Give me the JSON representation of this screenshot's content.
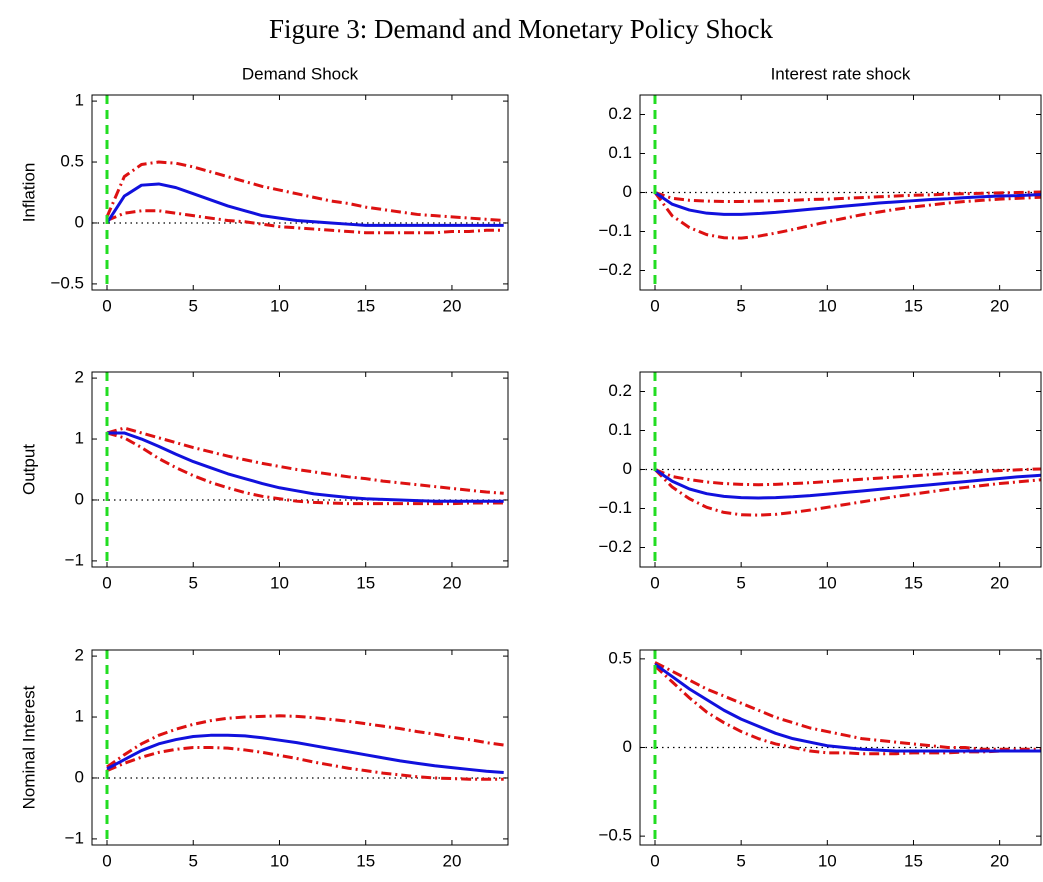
{
  "title": "Figure 3: Demand and Monetary Policy Shock",
  "chart_data": [
    {
      "type": "line",
      "title": "Demand Shock",
      "ylabel": "Inflation",
      "x": [
        0,
        1,
        2,
        3,
        4,
        5,
        6,
        7,
        8,
        9,
        10,
        11,
        12,
        13,
        14,
        15,
        16,
        17,
        18,
        19,
        20,
        21,
        22,
        23
      ],
      "xlim": [
        -0.87,
        23.25
      ],
      "xticks": [
        0,
        5,
        10,
        15,
        20
      ],
      "ylim": [
        -0.55,
        1.05
      ],
      "yticks": [
        {
          "value": -0.5,
          "label": "−0.5"
        },
        0,
        0.5,
        1
      ],
      "hline": 0,
      "vline": 0,
      "hline_color": "#000000",
      "vline_color": "#22dd22",
      "series": [
        {
          "color": "#dd1111",
          "style": "dashdot",
          "values": [
            0.05,
            0.38,
            0.48,
            0.5,
            0.49,
            0.46,
            0.42,
            0.38,
            0.34,
            0.3,
            0.27,
            0.24,
            0.21,
            0.18,
            0.16,
            0.13,
            0.11,
            0.09,
            0.07,
            0.06,
            0.05,
            0.04,
            0.03,
            0.02
          ]
        },
        {
          "color": "#dd1111",
          "style": "dashdot",
          "values": [
            0.02,
            0.08,
            0.1,
            0.1,
            0.08,
            0.06,
            0.04,
            0.02,
            0.01,
            -0.01,
            -0.03,
            -0.04,
            -0.05,
            -0.06,
            -0.07,
            -0.08,
            -0.08,
            -0.08,
            -0.08,
            -0.08,
            -0.07,
            -0.07,
            -0.06,
            -0.06
          ]
        },
        {
          "color": "#1111dd",
          "style": "solid",
          "values": [
            0,
            0.22,
            0.31,
            0.32,
            0.29,
            0.24,
            0.19,
            0.14,
            0.1,
            0.06,
            0.04,
            0.02,
            0.01,
            0,
            -0.01,
            -0.02,
            -0.02,
            -0.02,
            -0.02,
            -0.02,
            -0.02,
            -0.02,
            -0.02,
            -0.02
          ]
        }
      ]
    },
    {
      "type": "line",
      "title": "Interest rate shock",
      "x": [
        0,
        1,
        2,
        3,
        4,
        5,
        6,
        7,
        8,
        9,
        10,
        11,
        12,
        13,
        14,
        15,
        16,
        17,
        18,
        19,
        20,
        21,
        22,
        23
      ],
      "xlim": [
        -0.87,
        22.4
      ],
      "xticks": [
        0,
        5,
        10,
        15,
        20
      ],
      "ylim": [
        -0.25,
        0.25
      ],
      "yticks": [
        {
          "value": -0.2,
          "label": "−0.2"
        },
        {
          "value": -0.1,
          "label": "−0.1"
        },
        0,
        0.1,
        0.2
      ],
      "hline": 0,
      "vline": 0,
      "hline_color": "#000000",
      "vline_color": "#22dd22",
      "series": [
        {
          "color": "#dd1111",
          "style": "dashdot",
          "values": [
            0,
            -0.015,
            -0.02,
            -0.022,
            -0.023,
            -0.023,
            -0.022,
            -0.021,
            -0.02,
            -0.018,
            -0.017,
            -0.015,
            -0.013,
            -0.011,
            -0.009,
            -0.007,
            -0.006,
            -0.004,
            -0.003,
            -0.002,
            -0.001,
            0,
            0.001,
            0.002
          ]
        },
        {
          "color": "#dd1111",
          "style": "dashdot",
          "values": [
            0,
            -0.06,
            -0.09,
            -0.108,
            -0.116,
            -0.117,
            -0.112,
            -0.104,
            -0.095,
            -0.085,
            -0.075,
            -0.066,
            -0.057,
            -0.05,
            -0.043,
            -0.037,
            -0.032,
            -0.027,
            -0.023,
            -0.02,
            -0.017,
            -0.015,
            -0.013,
            -0.011
          ]
        },
        {
          "color": "#1111dd",
          "style": "solid",
          "values": [
            0,
            -0.03,
            -0.045,
            -0.053,
            -0.056,
            -0.056,
            -0.054,
            -0.051,
            -0.047,
            -0.043,
            -0.039,
            -0.035,
            -0.031,
            -0.027,
            -0.024,
            -0.021,
            -0.018,
            -0.016,
            -0.013,
            -0.011,
            -0.009,
            -0.008,
            -0.006,
            -0.005
          ]
        }
      ]
    },
    {
      "type": "line",
      "ylabel": "Output",
      "x": [
        0,
        1,
        2,
        3,
        4,
        5,
        6,
        7,
        8,
        9,
        10,
        11,
        12,
        13,
        14,
        15,
        16,
        17,
        18,
        19,
        20,
        21,
        22,
        23
      ],
      "xlim": [
        -0.87,
        23.25
      ],
      "xticks": [
        0,
        5,
        10,
        15,
        20
      ],
      "ylim": [
        -1.1,
        2.1
      ],
      "yticks": [
        {
          "value": -1,
          "label": "−1"
        },
        0,
        1,
        2
      ],
      "hline": 0,
      "vline": 0,
      "hline_color": "#000000",
      "vline_color": "#22dd22",
      "series": [
        {
          "color": "#dd1111",
          "style": "dashdot",
          "values": [
            1.1,
            1.18,
            1.1,
            1.02,
            0.94,
            0.86,
            0.79,
            0.72,
            0.66,
            0.6,
            0.55,
            0.5,
            0.46,
            0.42,
            0.38,
            0.35,
            0.31,
            0.28,
            0.25,
            0.22,
            0.19,
            0.16,
            0.13,
            0.11
          ]
        },
        {
          "color": "#dd1111",
          "style": "dashdot",
          "values": [
            1.1,
            1.02,
            0.86,
            0.68,
            0.53,
            0.4,
            0.29,
            0.2,
            0.12,
            0.06,
            0.02,
            -0.02,
            -0.04,
            -0.05,
            -0.06,
            -0.06,
            -0.06,
            -0.06,
            -0.06,
            -0.06,
            -0.06,
            -0.05,
            -0.05,
            -0.05
          ]
        },
        {
          "color": "#1111dd",
          "style": "solid",
          "values": [
            1.1,
            1.1,
            1.0,
            0.88,
            0.75,
            0.63,
            0.53,
            0.43,
            0.35,
            0.27,
            0.2,
            0.15,
            0.1,
            0.07,
            0.04,
            0.02,
            0.01,
            0,
            -0.01,
            -0.02,
            -0.02,
            -0.02,
            -0.02,
            -0.02
          ]
        }
      ]
    },
    {
      "type": "line",
      "x": [
        0,
        1,
        2,
        3,
        4,
        5,
        6,
        7,
        8,
        9,
        10,
        11,
        12,
        13,
        14,
        15,
        16,
        17,
        18,
        19,
        20,
        21,
        22,
        23
      ],
      "xlim": [
        -0.87,
        22.4
      ],
      "xticks": [
        0,
        5,
        10,
        15,
        20
      ],
      "ylim": [
        -0.25,
        0.25
      ],
      "yticks": [
        {
          "value": -0.2,
          "label": "−0.2"
        },
        {
          "value": -0.1,
          "label": "−0.1"
        },
        0,
        0.1,
        0.2
      ],
      "hline": 0,
      "vline": 0,
      "hline_color": "#000000",
      "vline_color": "#22dd22",
      "series": [
        {
          "color": "#dd1111",
          "style": "dashdot",
          "values": [
            0,
            -0.018,
            -0.026,
            -0.032,
            -0.036,
            -0.038,
            -0.039,
            -0.038,
            -0.036,
            -0.034,
            -0.031,
            -0.028,
            -0.025,
            -0.022,
            -0.019,
            -0.016,
            -0.013,
            -0.01,
            -0.008,
            -0.005,
            -0.003,
            -0.001,
            0.001,
            0.002
          ]
        },
        {
          "color": "#dd1111",
          "style": "dashdot",
          "values": [
            0,
            -0.045,
            -0.075,
            -0.097,
            -0.11,
            -0.116,
            -0.117,
            -0.115,
            -0.11,
            -0.104,
            -0.097,
            -0.09,
            -0.083,
            -0.076,
            -0.069,
            -0.063,
            -0.057,
            -0.051,
            -0.046,
            -0.041,
            -0.036,
            -0.032,
            -0.028,
            -0.024
          ]
        },
        {
          "color": "#1111dd",
          "style": "solid",
          "values": [
            0,
            -0.03,
            -0.05,
            -0.062,
            -0.069,
            -0.072,
            -0.073,
            -0.072,
            -0.07,
            -0.067,
            -0.063,
            -0.059,
            -0.055,
            -0.051,
            -0.047,
            -0.043,
            -0.039,
            -0.035,
            -0.031,
            -0.027,
            -0.023,
            -0.019,
            -0.016,
            -0.013
          ]
        }
      ]
    },
    {
      "type": "line",
      "ylabel": "Nominal Interest",
      "x": [
        0,
        1,
        2,
        3,
        4,
        5,
        6,
        7,
        8,
        9,
        10,
        11,
        12,
        13,
        14,
        15,
        16,
        17,
        18,
        19,
        20,
        21,
        22,
        23
      ],
      "xlim": [
        -0.87,
        23.25
      ],
      "xticks": [
        0,
        5,
        10,
        15,
        20
      ],
      "ylim": [
        -1.1,
        2.1
      ],
      "yticks": [
        {
          "value": -1,
          "label": "−1"
        },
        0,
        1,
        2
      ],
      "hline": 0,
      "vline": 0,
      "hline_color": "#000000",
      "vline_color": "#22dd22",
      "series": [
        {
          "color": "#dd1111",
          "style": "dashdot",
          "values": [
            0.18,
            0.38,
            0.56,
            0.7,
            0.8,
            0.88,
            0.94,
            0.98,
            1.0,
            1.01,
            1.02,
            1.01,
            0.99,
            0.96,
            0.93,
            0.89,
            0.85,
            0.81,
            0.76,
            0.72,
            0.67,
            0.63,
            0.58,
            0.54
          ]
        },
        {
          "color": "#dd1111",
          "style": "dashdot",
          "values": [
            0.12,
            0.24,
            0.34,
            0.42,
            0.47,
            0.5,
            0.5,
            0.49,
            0.46,
            0.42,
            0.37,
            0.32,
            0.26,
            0.21,
            0.16,
            0.12,
            0.08,
            0.05,
            0.02,
            0,
            -0.01,
            -0.02,
            -0.02,
            -0.02
          ]
        },
        {
          "color": "#1111dd",
          "style": "solid",
          "values": [
            0.15,
            0.3,
            0.45,
            0.56,
            0.63,
            0.68,
            0.7,
            0.7,
            0.69,
            0.66,
            0.62,
            0.58,
            0.53,
            0.48,
            0.43,
            0.38,
            0.33,
            0.28,
            0.24,
            0.2,
            0.17,
            0.14,
            0.11,
            0.09
          ]
        }
      ]
    },
    {
      "type": "line",
      "x": [
        0,
        1,
        2,
        3,
        4,
        5,
        6,
        7,
        8,
        9,
        10,
        11,
        12,
        13,
        14,
        15,
        16,
        17,
        18,
        19,
        20,
        21,
        22,
        23
      ],
      "xlim": [
        -0.87,
        22.4
      ],
      "xticks": [
        0,
        5,
        10,
        15,
        20
      ],
      "ylim": [
        -0.55,
        0.55
      ],
      "yticks": [
        {
          "value": -0.5,
          "label": "−0.5"
        },
        0,
        0.5
      ],
      "hline": 0,
      "vline": 0,
      "hline_color": "#000000",
      "vline_color": "#22dd22",
      "series": [
        {
          "color": "#dd1111",
          "style": "dashdot",
          "values": [
            0.48,
            0.43,
            0.38,
            0.33,
            0.29,
            0.25,
            0.21,
            0.17,
            0.14,
            0.11,
            0.09,
            0.07,
            0.05,
            0.04,
            0.03,
            0.02,
            0.01,
            0,
            0,
            -0.01,
            -0.01,
            -0.01,
            -0.01,
            -0.01
          ]
        },
        {
          "color": "#dd1111",
          "style": "dashdot",
          "values": [
            0.46,
            0.37,
            0.28,
            0.2,
            0.14,
            0.09,
            0.05,
            0.02,
            0,
            -0.02,
            -0.03,
            -0.03,
            -0.035,
            -0.035,
            -0.035,
            -0.03,
            -0.03,
            -0.03,
            -0.025,
            -0.025,
            -0.02,
            -0.02,
            -0.02,
            -0.02
          ]
        },
        {
          "color": "#1111dd",
          "style": "solid",
          "values": [
            0.47,
            0.4,
            0.33,
            0.27,
            0.21,
            0.16,
            0.12,
            0.08,
            0.05,
            0.03,
            0.01,
            0,
            -0.01,
            -0.015,
            -0.02,
            -0.02,
            -0.02,
            -0.02,
            -0.02,
            -0.02,
            -0.02,
            -0.02,
            -0.02,
            -0.02
          ]
        }
      ]
    }
  ]
}
